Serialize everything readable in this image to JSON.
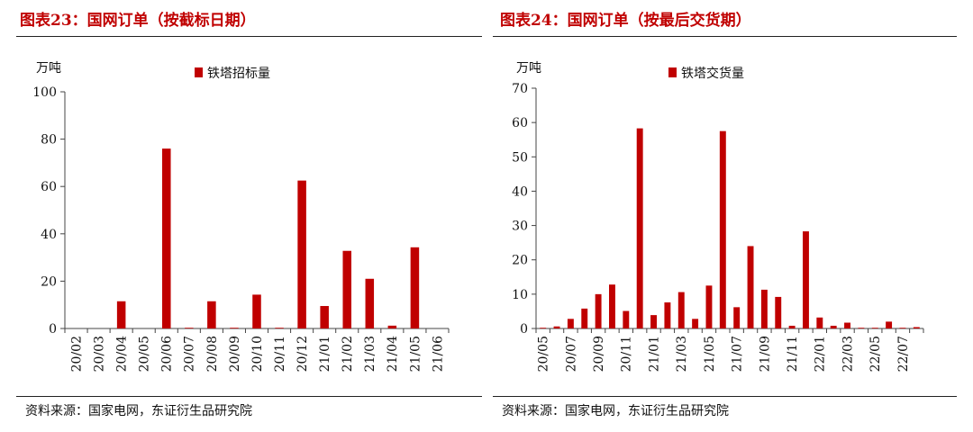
{
  "colors": {
    "bar": "#c00000",
    "title": "#c00000",
    "axis": "#444444"
  },
  "charts": [
    {
      "title": "图表23：国网订单（按截标日期）",
      "source": "资料来源：国家电网，东证衍生品研究院",
      "chart_data": {
        "type": "bar",
        "unit_label": "万吨",
        "categories": [
          "20/02",
          "20/03",
          "20/04",
          "20/05",
          "20/06",
          "20/07",
          "20/08",
          "20/09",
          "20/10",
          "20/11",
          "20/12",
          "21/01",
          "21/02",
          "21/03",
          "21/04",
          "21/05",
          "21/06"
        ],
        "series": [
          {
            "name": "铁塔招标量",
            "values": [
              0,
              0,
              11.5,
              0,
              76,
              0.2,
              11.5,
              0.3,
              14.3,
              0.3,
              62.5,
              9.5,
              32.8,
              21,
              1.2,
              34.3,
              0
            ]
          }
        ],
        "ylim": [
          0,
          100
        ],
        "yticks": [
          0,
          20,
          40,
          60,
          80,
          100
        ],
        "legend": "top-center",
        "grid": false
      }
    },
    {
      "title": "图表24：国网订单（按最后交货期）",
      "source": "资料来源：国家电网，东证衍生品研究院",
      "chart_data": {
        "type": "bar",
        "unit_label": "万吨",
        "categories": [
          "20/05",
          "20/06",
          "20/07",
          "20/08",
          "20/09",
          "20/10",
          "20/11",
          "20/12",
          "21/01",
          "21/02",
          "21/03",
          "21/04",
          "21/05",
          "21/06",
          "21/07",
          "21/08",
          "21/09",
          "21/10",
          "21/11",
          "21/12",
          "22/01",
          "22/02",
          "22/03",
          "22/04",
          "22/05",
          "22/06",
          "22/07",
          "22/08"
        ],
        "tick_labels": [
          "20/05",
          "",
          "20/07",
          "",
          "20/09",
          "",
          "20/11",
          "",
          "21/01",
          "",
          "21/03",
          "",
          "21/05",
          "",
          "21/07",
          "",
          "21/09",
          "",
          "21/11",
          "",
          "22/01",
          "",
          "22/03",
          "",
          "22/05",
          "",
          "22/07",
          ""
        ],
        "series": [
          {
            "name": "铁塔交货量",
            "values": [
              0.2,
              0.6,
              2.8,
              5.8,
              10,
              12.8,
              5.1,
              58.3,
              3.9,
              7.6,
              10.6,
              2.8,
              12.5,
              57.5,
              6.2,
              24,
              11.3,
              9.2,
              0.8,
              28.3,
              3.2,
              0.8,
              1.7,
              0.1,
              0.2,
              2,
              0.1,
              0.4
            ]
          }
        ],
        "ylim": [
          0,
          70
        ],
        "yticks": [
          0,
          10,
          20,
          30,
          40,
          50,
          60,
          70
        ],
        "legend": "top-center",
        "grid": false
      }
    }
  ]
}
